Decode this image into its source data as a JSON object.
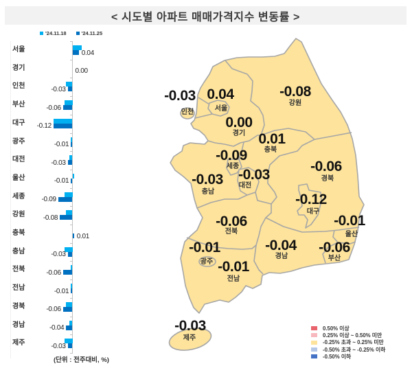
{
  "header": {
    "title": "< 시도별 아파트 매매가격지수 변동률 >"
  },
  "chart_legend": {
    "series": [
      {
        "label": "'24.11.18",
        "color": "#00B0F0"
      },
      {
        "label": "'24.11.25",
        "color": "#0070C0"
      }
    ]
  },
  "chart_data": {
    "type": "bar",
    "orientation": "horizontal",
    "title": "시도별 아파트 매매가격지수 변동률",
    "categories": [
      "서울",
      "경기",
      "인천",
      "부산",
      "대구",
      "광주",
      "대전",
      "울산",
      "세종",
      "강원",
      "충북",
      "충남",
      "전북",
      "전남",
      "경북",
      "경남",
      "제주"
    ],
    "series": [
      {
        "name": "'24.11.18",
        "color": "#00B0F0",
        "values": [
          0.06,
          0.0,
          -0.04,
          -0.05,
          -0.12,
          -0.01,
          -0.02,
          0.01,
          -0.05,
          -0.04,
          0.0,
          -0.05,
          -0.01,
          -0.01,
          -0.04,
          -0.02,
          -0.05
        ]
      },
      {
        "name": "'24.11.25",
        "color": "#0070C0",
        "values": [
          0.04,
          0.0,
          -0.03,
          -0.06,
          -0.12,
          -0.01,
          -0.03,
          -0.01,
          -0.09,
          -0.08,
          0.01,
          -0.03,
          -0.06,
          -0.01,
          -0.06,
          -0.04,
          -0.03
        ]
      }
    ],
    "data_labels": [
      "0.04",
      "0.00",
      "-0.03",
      "-0.06",
      "-0.12",
      "-0.01",
      "-0.03",
      "-0.01",
      "-0.09",
      "-0.08",
      "0.01",
      "-0.03",
      "-0.06",
      "-0.01",
      "-0.06",
      "-0.04",
      "-0.03"
    ],
    "xlabel": "",
    "ylabel": "",
    "unit_note": "(단위 : 전주대비, %)",
    "legend_position": "top",
    "grid": false
  },
  "map": {
    "fill_color": "#FDE39C",
    "border_color": "#A6A6A6",
    "regions": {
      "incheon": {
        "name": "인천",
        "value": "-0.03"
      },
      "seoul": {
        "name": "서울",
        "value": "0.04"
      },
      "gyeonggi": {
        "name": "경기",
        "value": "0.00"
      },
      "gangwon": {
        "name": "강원",
        "value": "-0.08"
      },
      "chungbuk": {
        "name": "충북",
        "value": "0.01"
      },
      "sejong": {
        "name": "세종",
        "value": "-0.09"
      },
      "daejeon": {
        "name": "대전",
        "value": "-0.03"
      },
      "chungnam": {
        "name": "충남",
        "value": "-0.03"
      },
      "gyeongbuk": {
        "name": "경북",
        "value": "-0.06"
      },
      "daegu": {
        "name": "대구",
        "value": "-0.12"
      },
      "ulsan": {
        "name": "울산",
        "value": "-0.01"
      },
      "jeonbuk": {
        "name": "전북",
        "value": "-0.06"
      },
      "gwangju": {
        "name": "광주",
        "value": "-0.01"
      },
      "jeonnam": {
        "name": "전남",
        "value": "-0.01"
      },
      "gyeongnam": {
        "name": "경남",
        "value": "-0.04"
      },
      "busan": {
        "name": "부산",
        "value": "-0.06"
      },
      "jeju": {
        "name": "제주",
        "value": "-0.03"
      }
    }
  },
  "map_legend": {
    "items": [
      {
        "label": " 0.50% 이상",
        "color": "#E8636B"
      },
      {
        "label": " 0.25% 이상 ~ 0.50% 미만",
        "color": "#F7B8BE"
      },
      {
        "label": "-0.25% 초과 ~ 0.25% 미만",
        "color": "#FDE39C"
      },
      {
        "label": "-0.50% 초과 ~ -0.25% 이하",
        "color": "#B4C7E7"
      },
      {
        "label": "-0.50% 이하",
        "color": "#4472C4"
      }
    ]
  }
}
